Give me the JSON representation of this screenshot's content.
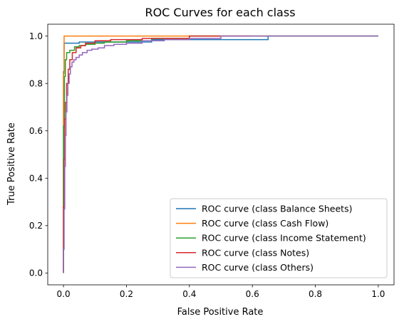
{
  "chart_data": {
    "type": "line",
    "title": "ROC Curves for each class",
    "xlabel": "False Positive Rate",
    "ylabel": "True Positive Rate",
    "xlim": [
      -0.05,
      1.05
    ],
    "ylim": [
      -0.05,
      1.05
    ],
    "xticks": [
      "0.0",
      "0.2",
      "0.4",
      "0.6",
      "0.8",
      "1.0"
    ],
    "yticks": [
      "0.0",
      "0.2",
      "0.4",
      "0.6",
      "0.8",
      "1.0"
    ],
    "grid": false,
    "legend_position": "lower-right",
    "series": [
      {
        "name": "ROC curve (class Balance Sheets)",
        "color": "#1f77b4",
        "x": [
          0.0,
          0.0,
          0.002,
          0.002,
          0.05,
          0.05,
          0.28,
          0.28,
          0.65,
          0.65,
          1.0
        ],
        "y": [
          0.0,
          0.85,
          0.85,
          0.97,
          0.97,
          0.975,
          0.975,
          0.985,
          0.985,
          1.0,
          1.0
        ]
      },
      {
        "name": "ROC curve (class Cash Flow)",
        "color": "#ff7f0e",
        "x": [
          0.0,
          0.0,
          0.002,
          0.002,
          0.38,
          0.38,
          1.0
        ],
        "y": [
          0.0,
          0.84,
          0.84,
          1.0,
          1.0,
          1.0,
          1.0
        ]
      },
      {
        "name": "ROC curve (class Income Statement)",
        "color": "#2ca02c",
        "x": [
          0.0,
          0.0,
          0.003,
          0.003,
          0.006,
          0.006,
          0.01,
          0.01,
          0.02,
          0.02,
          0.035,
          0.035,
          0.05,
          0.05,
          0.07,
          0.07,
          0.1,
          0.1,
          0.13,
          0.13,
          0.2,
          0.2,
          0.28,
          0.28,
          0.4,
          0.4,
          1.0
        ],
        "y": [
          0.0,
          0.62,
          0.62,
          0.83,
          0.83,
          0.9,
          0.9,
          0.93,
          0.93,
          0.94,
          0.94,
          0.955,
          0.955,
          0.96,
          0.96,
          0.965,
          0.965,
          0.97,
          0.97,
          0.975,
          0.975,
          0.98,
          0.98,
          0.99,
          0.99,
          1.0,
          1.0
        ]
      },
      {
        "name": "ROC curve (class Notes)",
        "color": "#d62728",
        "x": [
          0.0,
          0.0,
          0.002,
          0.002,
          0.004,
          0.004,
          0.007,
          0.007,
          0.01,
          0.01,
          0.015,
          0.015,
          0.02,
          0.02,
          0.028,
          0.028,
          0.04,
          0.04,
          0.055,
          0.055,
          0.07,
          0.07,
          0.1,
          0.1,
          0.15,
          0.15,
          0.25,
          0.25,
          0.4,
          0.4,
          0.6
        ],
        "y": [
          0.0,
          0.28,
          0.28,
          0.48,
          0.48,
          0.65,
          0.65,
          0.72,
          0.72,
          0.8,
          0.8,
          0.86,
          0.86,
          0.9,
          0.9,
          0.93,
          0.93,
          0.95,
          0.95,
          0.96,
          0.96,
          0.97,
          0.97,
          0.98,
          0.98,
          0.985,
          0.985,
          0.99,
          0.99,
          1.0,
          1.0
        ]
      },
      {
        "name": "ROC curve (class Others)",
        "color": "#9467bd",
        "x": [
          0.0,
          0.0,
          0.002,
          0.002,
          0.004,
          0.004,
          0.006,
          0.006,
          0.008,
          0.008,
          0.011,
          0.011,
          0.014,
          0.014,
          0.018,
          0.018,
          0.022,
          0.022,
          0.027,
          0.027,
          0.033,
          0.033,
          0.04,
          0.04,
          0.05,
          0.05,
          0.06,
          0.06,
          0.075,
          0.075,
          0.09,
          0.09,
          0.11,
          0.11,
          0.13,
          0.13,
          0.16,
          0.16,
          0.2,
          0.2,
          0.25,
          0.25,
          0.32,
          0.32,
          0.4,
          0.4,
          0.5,
          0.5,
          1.0
        ],
        "y": [
          0.0,
          0.1,
          0.1,
          0.27,
          0.27,
          0.45,
          0.45,
          0.58,
          0.58,
          0.68,
          0.68,
          0.75,
          0.75,
          0.8,
          0.8,
          0.84,
          0.84,
          0.87,
          0.87,
          0.89,
          0.89,
          0.9,
          0.9,
          0.91,
          0.91,
          0.92,
          0.92,
          0.93,
          0.93,
          0.94,
          0.94,
          0.945,
          0.945,
          0.95,
          0.95,
          0.96,
          0.96,
          0.965,
          0.965,
          0.97,
          0.97,
          0.98,
          0.98,
          0.985,
          0.985,
          0.99,
          0.99,
          1.0,
          1.0
        ]
      }
    ]
  }
}
